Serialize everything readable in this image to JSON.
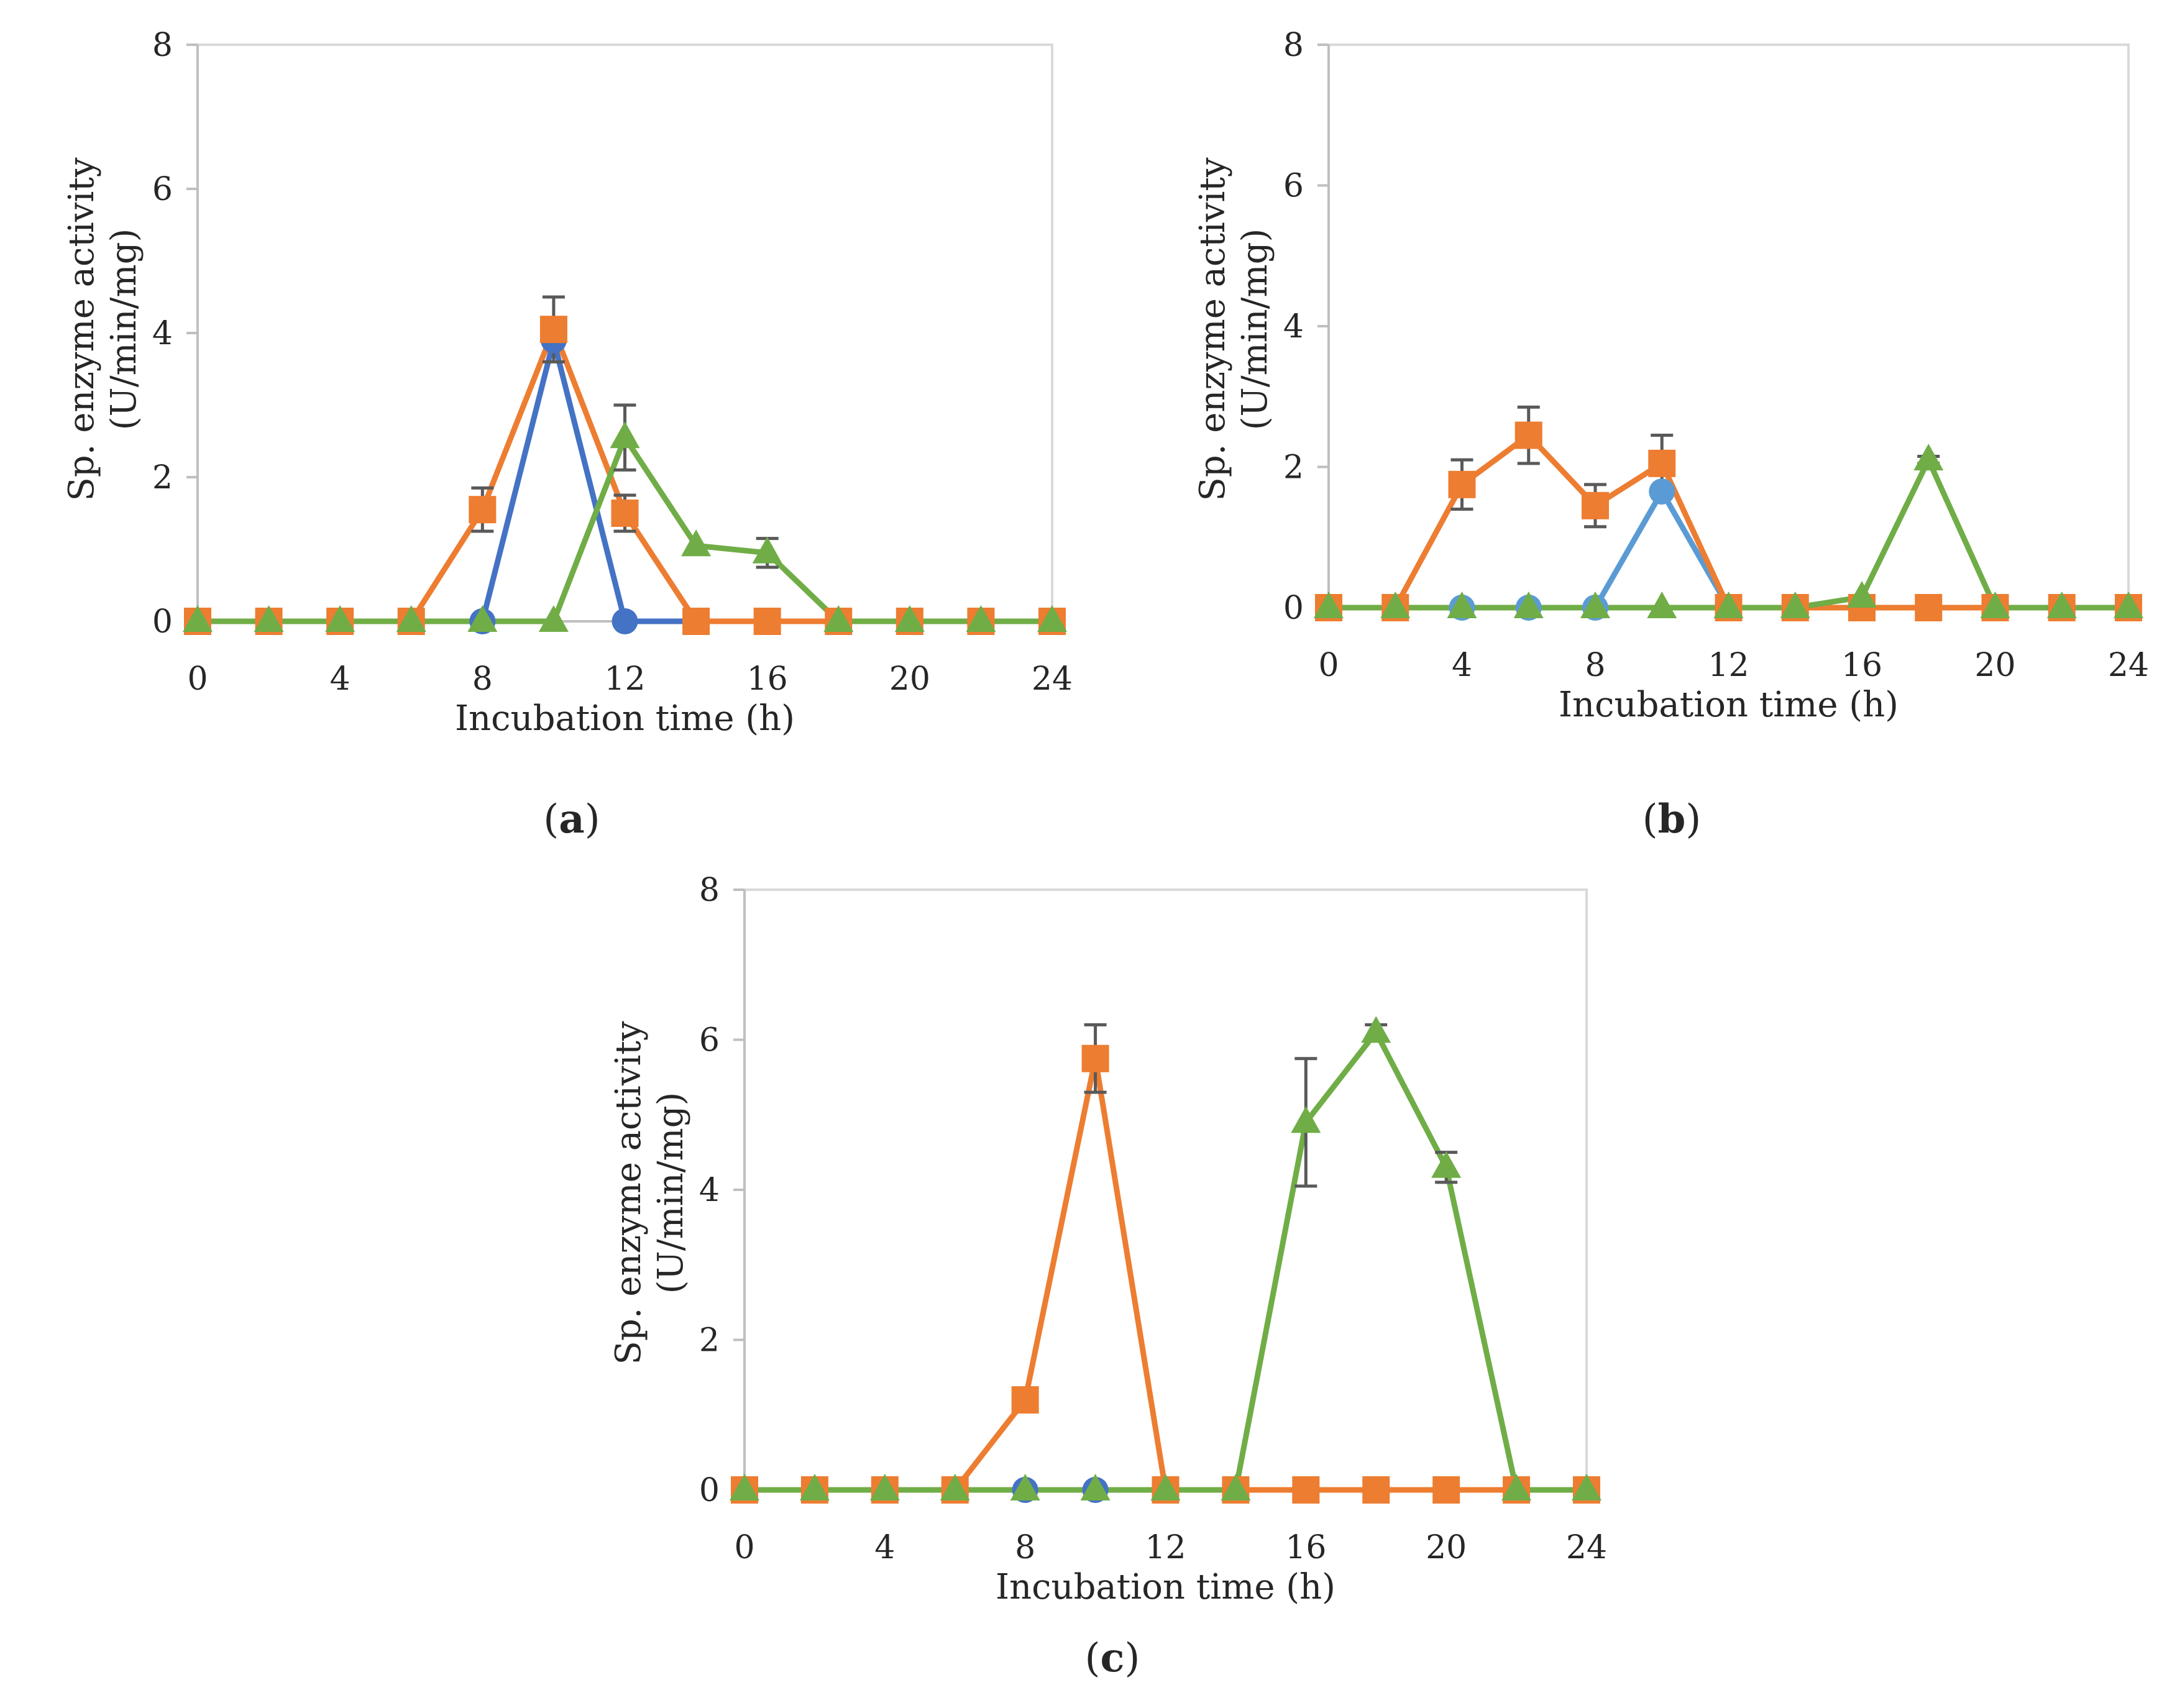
{
  "chart_data": [
    {
      "type": "line",
      "panel_label": "a",
      "caption_open": "(",
      "caption_close": ")",
      "xlabel": "Incubation time (h)",
      "ylabel_line1": "Sp. enzyme activity",
      "ylabel_line2": "(U/min/mg)",
      "xlim": [
        0,
        24
      ],
      "ylim": [
        0,
        8
      ],
      "x_ticks": [
        0,
        4,
        8,
        12,
        16,
        20,
        24
      ],
      "y_ticks": [
        0,
        2,
        4,
        6,
        8
      ],
      "grid": false,
      "series": [
        {
          "name": "series-circle",
          "marker": "circle",
          "color": "#4472c4",
          "x": [
            0,
            2,
            4,
            6,
            8,
            10,
            12,
            14
          ],
          "y": [
            0,
            0,
            0,
            0,
            0,
            3.9,
            0,
            0
          ]
        },
        {
          "name": "series-square",
          "marker": "square",
          "color": "#ed7d31",
          "x": [
            0,
            2,
            4,
            6,
            8,
            10,
            12,
            14,
            16,
            18,
            20,
            22,
            24
          ],
          "y": [
            0,
            0,
            0,
            0,
            1.55,
            4.05,
            1.5,
            0,
            0,
            0,
            0,
            0,
            0
          ],
          "error": [
            0,
            0,
            0,
            0,
            0.3,
            0.45,
            0.25,
            0,
            0,
            0,
            0,
            0,
            0
          ]
        },
        {
          "name": "series-triangle",
          "marker": "triangle",
          "color": "#70ad47",
          "x": [
            0,
            2,
            4,
            6,
            8,
            10,
            12,
            14,
            16,
            18,
            20,
            22,
            24
          ],
          "y": [
            0,
            0,
            0,
            0,
            0,
            0,
            2.55,
            1.05,
            0.95,
            0,
            0,
            0,
            0
          ],
          "error": [
            0,
            0,
            0,
            0,
            0,
            0,
            0.45,
            0,
            0.2,
            0,
            0,
            0,
            0
          ]
        }
      ]
    },
    {
      "type": "line",
      "panel_label": "b",
      "caption_open": "(",
      "caption_close": ")",
      "xlabel": "Incubation time (h)",
      "ylabel_line1": "Sp. enzyme activity",
      "ylabel_line2": "(U/min/mg)",
      "xlim": [
        0,
        24
      ],
      "ylim": [
        0,
        8
      ],
      "x_ticks": [
        0,
        4,
        8,
        12,
        16,
        20,
        24
      ],
      "y_ticks": [
        0,
        2,
        4,
        6,
        8
      ],
      "grid": false,
      "series": [
        {
          "name": "series-circle",
          "marker": "circle",
          "color": "#5b9bd5",
          "x": [
            0,
            2,
            4,
            6,
            8,
            10,
            12
          ],
          "y": [
            0,
            0,
            0,
            0,
            0,
            1.65,
            0
          ]
        },
        {
          "name": "series-square",
          "marker": "square",
          "color": "#ed7d31",
          "x": [
            0,
            2,
            4,
            6,
            8,
            10,
            12,
            14,
            16,
            18,
            20,
            22,
            24
          ],
          "y": [
            0,
            0,
            1.75,
            2.45,
            1.45,
            2.05,
            0,
            0,
            0,
            0,
            0,
            0,
            0
          ],
          "error": [
            0,
            0,
            0.35,
            0.4,
            0.3,
            0.4,
            0,
            0,
            0,
            0,
            0,
            0,
            0
          ]
        },
        {
          "name": "series-triangle",
          "marker": "triangle",
          "color": "#70ad47",
          "x": [
            0,
            2,
            4,
            6,
            8,
            10,
            12,
            14,
            16,
            18,
            20,
            22,
            24
          ],
          "y": [
            0,
            0,
            0,
            0,
            0,
            0,
            0,
            0,
            0.15,
            2.1,
            0,
            0,
            0
          ],
          "error": [
            0,
            0,
            0,
            0,
            0,
            0,
            0,
            0,
            0,
            0.05,
            0,
            0,
            0
          ]
        }
      ]
    },
    {
      "type": "line",
      "panel_label": "c",
      "caption_open": "(",
      "caption_close": ")",
      "xlabel": "Incubation time (h)",
      "ylabel_line1": "Sp. enzyme activity",
      "ylabel_line2": "(U/min/mg)",
      "xlim": [
        0,
        24
      ],
      "ylim": [
        0,
        8
      ],
      "x_ticks": [
        0,
        4,
        8,
        12,
        16,
        20,
        24
      ],
      "y_ticks": [
        0,
        2,
        4,
        6,
        8
      ],
      "grid": false,
      "series": [
        {
          "name": "series-circle",
          "marker": "circle",
          "color": "#4472c4",
          "x": [
            0,
            2,
            4,
            6,
            8,
            10,
            12
          ],
          "y": [
            0,
            0,
            0,
            0,
            0,
            0,
            0
          ]
        },
        {
          "name": "series-square",
          "marker": "square",
          "color": "#ed7d31",
          "x": [
            0,
            2,
            4,
            6,
            8,
            10,
            12,
            14,
            16,
            18,
            20,
            22,
            24
          ],
          "y": [
            0,
            0,
            0,
            0,
            1.2,
            5.75,
            0,
            0,
            0,
            0,
            0,
            0,
            0
          ],
          "error": [
            0,
            0,
            0,
            0,
            0,
            0.45,
            0,
            0,
            0,
            0,
            0,
            0,
            0
          ]
        },
        {
          "name": "series-triangle",
          "marker": "triangle",
          "color": "#70ad47",
          "x": [
            0,
            2,
            4,
            6,
            8,
            10,
            12,
            14,
            16,
            18,
            20,
            22,
            24
          ],
          "y": [
            0,
            0,
            0,
            0,
            0,
            0,
            0,
            0,
            4.9,
            6.1,
            4.3,
            0,
            0
          ],
          "error": [
            0,
            0,
            0,
            0,
            0,
            0,
            0,
            0,
            0.85,
            0.1,
            0.2,
            0,
            0
          ]
        }
      ]
    }
  ]
}
